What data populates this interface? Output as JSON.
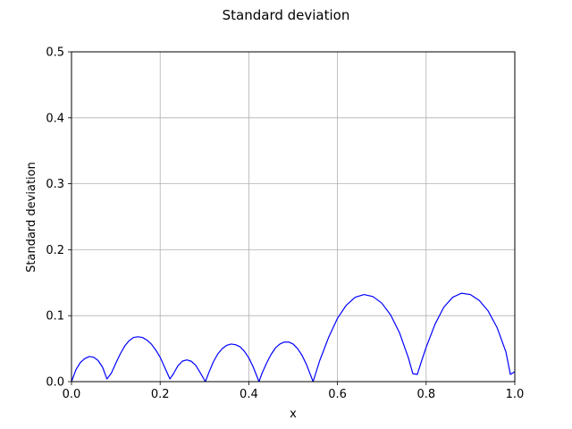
{
  "chart_data": {
    "type": "line",
    "title": "Standard deviation",
    "xlabel": "x",
    "ylabel": "Standard deviation",
    "xlim": [
      0,
      1
    ],
    "ylim": [
      0,
      0.5
    ],
    "xticks": [
      "0.0",
      "0.2",
      "0.4",
      "0.6",
      "0.8",
      "1.0"
    ],
    "yticks": [
      "0.0",
      "0.1",
      "0.2",
      "0.3",
      "0.4",
      "0.5"
    ],
    "grid": true,
    "series": [
      {
        "color": "#0000ff",
        "points": [
          [
            0.0,
            0.0
          ],
          [
            0.01,
            0.018
          ],
          [
            0.02,
            0.029
          ],
          [
            0.03,
            0.035
          ],
          [
            0.04,
            0.038
          ],
          [
            0.05,
            0.037
          ],
          [
            0.06,
            0.032
          ],
          [
            0.07,
            0.022
          ],
          [
            0.08,
            0.004
          ],
          [
            0.09,
            0.013
          ],
          [
            0.1,
            0.028
          ],
          [
            0.11,
            0.042
          ],
          [
            0.12,
            0.054
          ],
          [
            0.13,
            0.062
          ],
          [
            0.14,
            0.067
          ],
          [
            0.15,
            0.068
          ],
          [
            0.16,
            0.067
          ],
          [
            0.17,
            0.063
          ],
          [
            0.18,
            0.057
          ],
          [
            0.19,
            0.048
          ],
          [
            0.2,
            0.037
          ],
          [
            0.21,
            0.022
          ],
          [
            0.222,
            0.004
          ],
          [
            0.23,
            0.012
          ],
          [
            0.24,
            0.024
          ],
          [
            0.25,
            0.031
          ],
          [
            0.26,
            0.033
          ],
          [
            0.27,
            0.031
          ],
          [
            0.28,
            0.025
          ],
          [
            0.29,
            0.014
          ],
          [
            0.302,
            0.0
          ],
          [
            0.31,
            0.014
          ],
          [
            0.32,
            0.03
          ],
          [
            0.33,
            0.042
          ],
          [
            0.34,
            0.05
          ],
          [
            0.35,
            0.055
          ],
          [
            0.36,
            0.057
          ],
          [
            0.37,
            0.056
          ],
          [
            0.38,
            0.053
          ],
          [
            0.39,
            0.046
          ],
          [
            0.4,
            0.036
          ],
          [
            0.41,
            0.022
          ],
          [
            0.423,
            0.0
          ],
          [
            0.43,
            0.013
          ],
          [
            0.44,
            0.028
          ],
          [
            0.45,
            0.041
          ],
          [
            0.46,
            0.051
          ],
          [
            0.47,
            0.057
          ],
          [
            0.48,
            0.06
          ],
          [
            0.49,
            0.06
          ],
          [
            0.5,
            0.057
          ],
          [
            0.51,
            0.05
          ],
          [
            0.52,
            0.04
          ],
          [
            0.53,
            0.026
          ],
          [
            0.545,
            0.0
          ],
          [
            0.56,
            0.032
          ],
          [
            0.58,
            0.067
          ],
          [
            0.6,
            0.096
          ],
          [
            0.62,
            0.116
          ],
          [
            0.64,
            0.128
          ],
          [
            0.66,
            0.132
          ],
          [
            0.68,
            0.129
          ],
          [
            0.7,
            0.119
          ],
          [
            0.72,
            0.101
          ],
          [
            0.74,
            0.074
          ],
          [
            0.76,
            0.036
          ],
          [
            0.77,
            0.012
          ],
          [
            0.78,
            0.011
          ],
          [
            0.79,
            0.032
          ],
          [
            0.8,
            0.052
          ],
          [
            0.82,
            0.087
          ],
          [
            0.84,
            0.113
          ],
          [
            0.86,
            0.128
          ],
          [
            0.88,
            0.134
          ],
          [
            0.9,
            0.132
          ],
          [
            0.92,
            0.123
          ],
          [
            0.94,
            0.107
          ],
          [
            0.96,
            0.082
          ],
          [
            0.98,
            0.045
          ],
          [
            0.99,
            0.011
          ],
          [
            1.0,
            0.015
          ]
        ]
      }
    ]
  }
}
